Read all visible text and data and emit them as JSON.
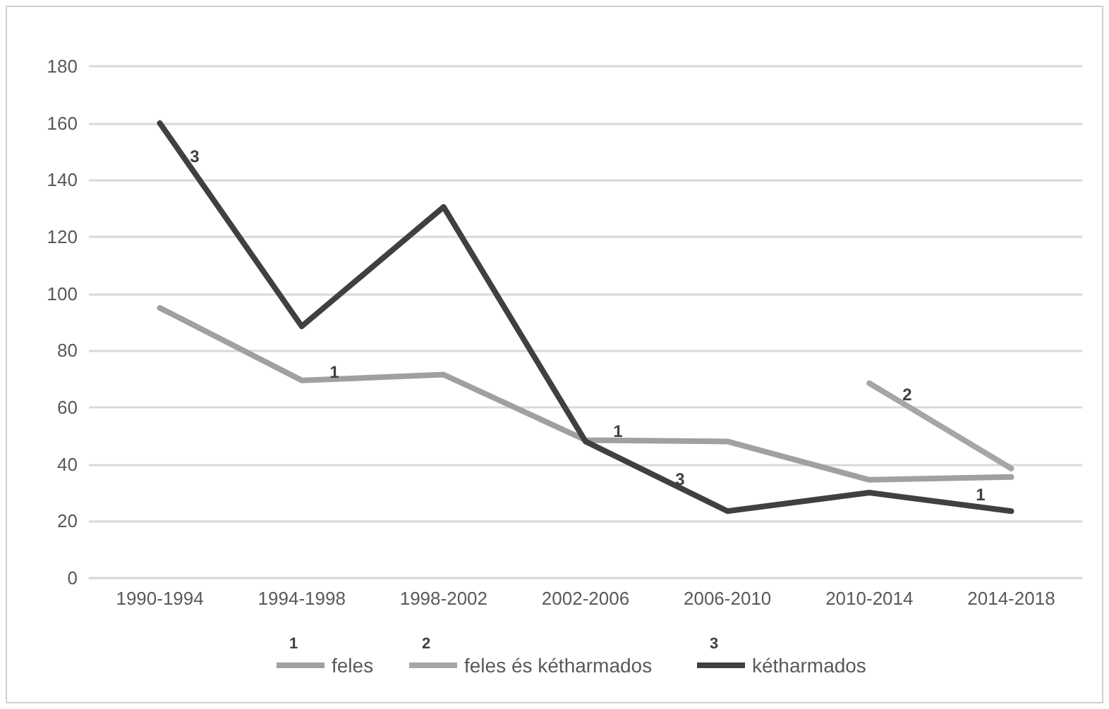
{
  "chart_data": {
    "type": "line",
    "categories": [
      "1990-1994",
      "1994-1998",
      "1998-2002",
      "2002-2006",
      "2006-2010",
      "2010-2014",
      "2014-2018"
    ],
    "series": [
      {
        "name": "feles",
        "color": "#a0a0a0",
        "values": [
          95,
          69.5,
          71.5,
          48.5,
          48,
          34.5,
          35.5
        ]
      },
      {
        "name": "feles és kétharmados",
        "color": "#a6a6a6",
        "values": [
          null,
          null,
          null,
          null,
          null,
          68.5,
          38.5
        ]
      },
      {
        "name": "kétharmados",
        "color": "#404040",
        "values": [
          160,
          88.5,
          130.5,
          48,
          23.5,
          30,
          23.5
        ]
      }
    ],
    "ylim": [
      0,
      180
    ],
    "yticks": [
      0,
      20,
      40,
      60,
      80,
      100,
      120,
      140,
      160,
      180
    ],
    "grid": "y",
    "legend": "bottom",
    "marker": "none",
    "line_style": "solid",
    "annotations": [
      "1",
      "2",
      "3",
      "3",
      "1",
      "1",
      "3",
      "2",
      "1"
    ]
  }
}
